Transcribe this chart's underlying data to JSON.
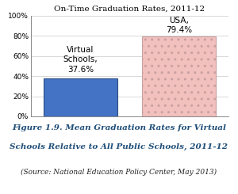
{
  "title": "On-Time Graduation Rates, 2011-12",
  "values": [
    37.6,
    79.4
  ],
  "bar_colors": [
    "#4472c4",
    "#f2c0bd"
  ],
  "bar_edge_color_blue": "#2e5080",
  "bar_edge_color_pink": "#c9a0a0",
  "hatch_color": "#c9a0a0",
  "ylim": [
    0,
    100
  ],
  "yticks": [
    0,
    20,
    40,
    60,
    80,
    100
  ],
  "yticklabels": [
    "0%",
    "20%",
    "40%",
    "60%",
    "80%",
    "100%"
  ],
  "label1_line1": "Virtual",
  "label1_line2": "Schools,",
  "label1_line3": "37.6%",
  "label2_line1": "USA,",
  "label2_line2": "79.4%",
  "caption_line1": "Figure 1.9. Mean Graduation Rates for Virtual",
  "caption_line2": "Schools Relative to All Public Schools, 2011-12",
  "caption_line3": "(Source: National Education Policy Center, May 2013)",
  "caption_color": "#1f4e79",
  "background_color": "#ffffff",
  "bar_label_fontsize": 7.5,
  "title_fontsize": 7.5,
  "caption_fontsize1": 7.5,
  "caption_fontsize2": 6.5,
  "grid_color": "#bbbbbb"
}
